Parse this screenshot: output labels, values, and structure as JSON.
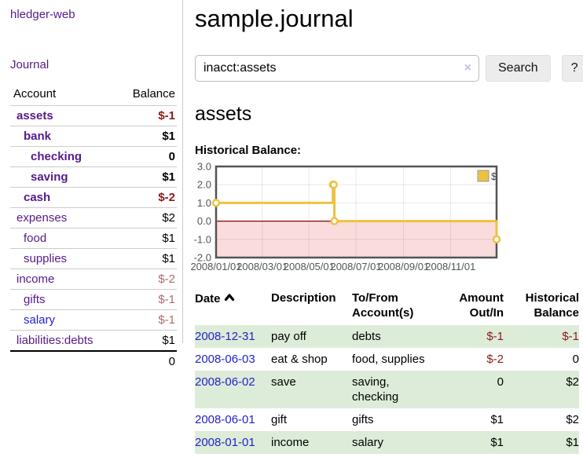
{
  "colors": {
    "link_purple": "#551a8b",
    "link_blue": "#2222cc",
    "negative_strong": "#8b1a1a",
    "negative_muted": "#b36a6a",
    "row_stripe_green": "#dcecd8",
    "chart_series_gold": "#edc240",
    "chart_negative_region": "#fbdcdc",
    "chart_zero_line": "#8b0000"
  },
  "sidebar": {
    "app_title": "hledger-web",
    "nav": {
      "journal": "Journal"
    },
    "accounts_table": {
      "col_account": "Account",
      "col_balance": "Balance",
      "rows": [
        {
          "name": "assets",
          "balance": "$-1"
        },
        {
          "name": "bank",
          "balance": "$1"
        },
        {
          "name": "checking",
          "balance": "0"
        },
        {
          "name": "saving",
          "balance": "$1"
        },
        {
          "name": "cash",
          "balance": "$-2"
        },
        {
          "name": "expenses",
          "balance": "$2"
        },
        {
          "name": "food",
          "balance": "$1"
        },
        {
          "name": "supplies",
          "balance": "$1"
        },
        {
          "name": "income",
          "balance": "$-2"
        },
        {
          "name": "gifts",
          "balance": "$-1"
        },
        {
          "name": "salary",
          "balance": "$-1"
        },
        {
          "name": "liabilities:debts",
          "balance": "$1"
        }
      ],
      "total": "0"
    }
  },
  "main": {
    "title": "sample.journal",
    "search": {
      "query": "inacct:assets",
      "clear_label": "×",
      "button_label": "Search",
      "help_label": "?"
    },
    "account_heading": "assets",
    "chart_label": "Historical Balance:",
    "register": {
      "headers": {
        "date": "Date",
        "description": "Description",
        "tofrom": "To/From\nAccount(s)",
        "amount": "Amount\nOut/In",
        "balance": "Historical\nBalance"
      },
      "rows": [
        {
          "date": "2008-12-31",
          "description": "pay off",
          "accounts": "debts",
          "amount": "$-1",
          "balance": "$-1"
        },
        {
          "date": "2008-06-03",
          "description": "eat & shop",
          "accounts": "food, supplies",
          "amount": "$-2",
          "balance": "0"
        },
        {
          "date": "2008-06-02",
          "description": "save",
          "accounts": "saving, checking",
          "amount": "0",
          "balance": "$2"
        },
        {
          "date": "2008-06-01",
          "description": "gift",
          "accounts": "gifts",
          "amount": "$1",
          "balance": "$2"
        },
        {
          "date": "2008-01-01",
          "description": "income",
          "accounts": "salary",
          "amount": "$1",
          "balance": "$1"
        }
      ]
    }
  },
  "chart_data": {
    "type": "line",
    "step": true,
    "title": "Historical Balance",
    "series": [
      {
        "name": "$",
        "color": "#edc240",
        "points": [
          [
            "2008-01-01",
            1
          ],
          [
            "2008-06-01",
            2
          ],
          [
            "2008-06-02",
            2
          ],
          [
            "2008-06-03",
            0
          ],
          [
            "2008-12-31",
            -1
          ]
        ]
      }
    ],
    "x_range": [
      "2008-01-01",
      "2008-12-31"
    ],
    "ylim": [
      -2,
      3
    ],
    "y_ticks": [
      {
        "value": 3,
        "label": "3.0"
      },
      {
        "value": 2,
        "label": "2.0"
      },
      {
        "value": 1,
        "label": "1.0"
      },
      {
        "value": 0,
        "label": "0.0"
      },
      {
        "value": -1,
        "label": "-1.0"
      },
      {
        "value": -2,
        "label": "-2.0"
      }
    ],
    "x_ticks": [
      {
        "date": "2008-01-01",
        "label": "2008/01/01"
      },
      {
        "date": "2008-03-01",
        "label": "2008/03/01"
      },
      {
        "date": "2008-05-01",
        "label": "2008/05/01"
      },
      {
        "date": "2008-07-01",
        "label": "2008/07/01"
      },
      {
        "date": "2008-09-01",
        "label": "2008/09/01"
      },
      {
        "date": "2008-11-01",
        "label": "2008/11/01"
      }
    ],
    "grid": true,
    "legend_position": "top-right",
    "negative_region_color": "#fbdcdc",
    "zero_line_color": "#8b0000"
  }
}
